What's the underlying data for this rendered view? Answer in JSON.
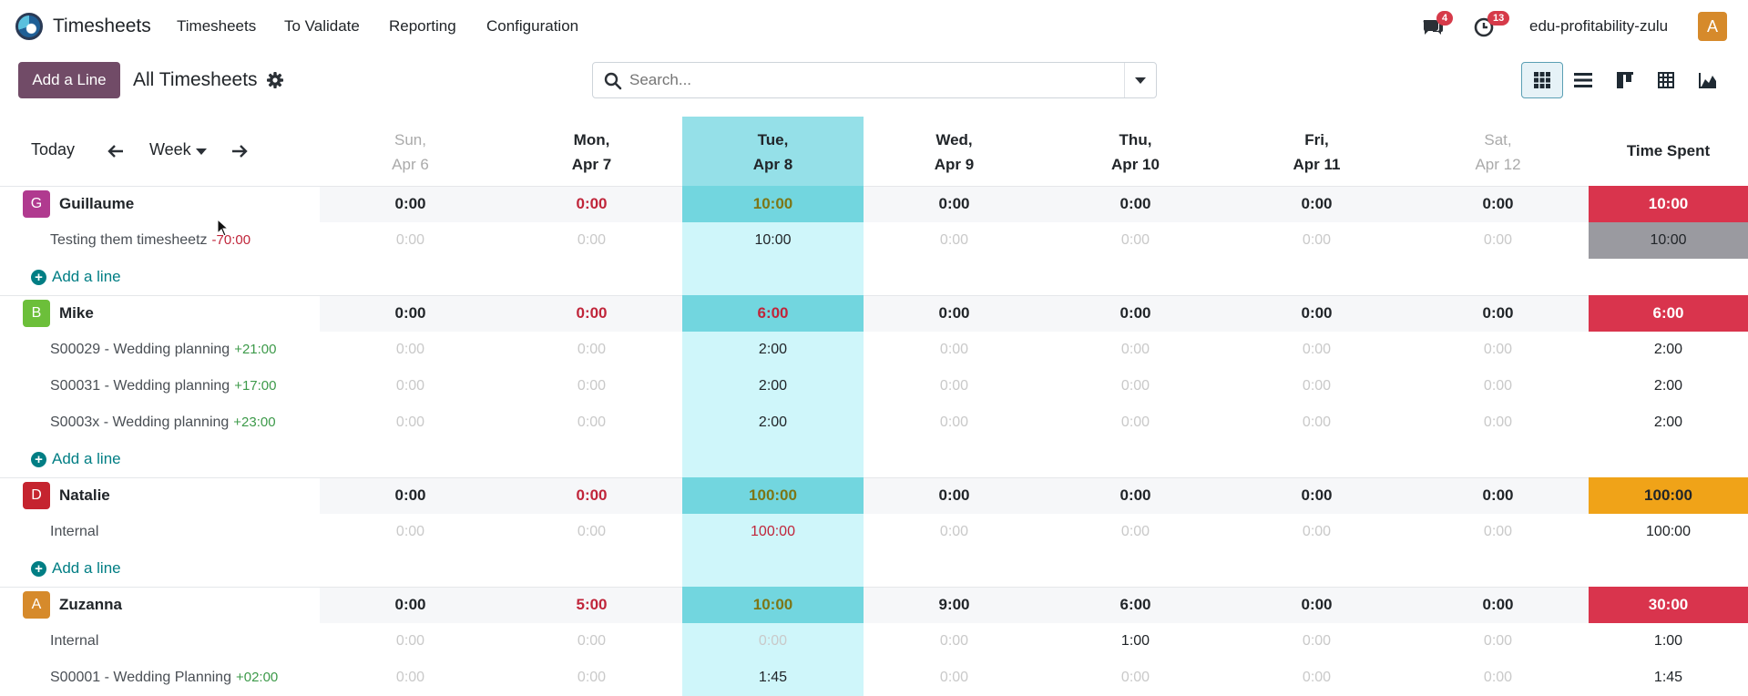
{
  "topnav": {
    "app_name": "Timesheets",
    "menu": [
      "Timesheets",
      "To Validate",
      "Reporting",
      "Configuration"
    ],
    "messages_badge": "4",
    "activities_badge": "13",
    "company": "edu-profitability-zulu",
    "user_initial": "A"
  },
  "control": {
    "add_button": "Add a Line",
    "breadcrumb": "All Timesheets",
    "search_placeholder": "Search...",
    "views": [
      "grid-icon",
      "list-icon",
      "kanban-icon",
      "pivot-icon",
      "graph-icon"
    ],
    "active_view": "grid-icon"
  },
  "grid": {
    "today_label": "Today",
    "range_label": "Week",
    "days": [
      {
        "day": "Sun,",
        "date": "Apr 6",
        "muted": true
      },
      {
        "day": "Mon,",
        "date": "Apr 7",
        "muted": false
      },
      {
        "day": "Tue,",
        "date": "Apr 8",
        "muted": false,
        "today": true
      },
      {
        "day": "Wed,",
        "date": "Apr 9",
        "muted": false
      },
      {
        "day": "Thu,",
        "date": "Apr 10",
        "muted": false
      },
      {
        "day": "Fri,",
        "date": "Apr 11",
        "muted": false
      },
      {
        "day": "Sat,",
        "date": "Apr 12",
        "muted": true
      }
    ],
    "total_label": "Time Spent",
    "add_line_label": "Add a line",
    "colors": {
      "over": "#d9344d",
      "warn": "#f0a318",
      "neutral": "#9a9aa0",
      "red_text": "#c0253a",
      "olive_text": "#7d7616",
      "green_text": "#3d9a4a",
      "muted_text": "#c9c9c9"
    },
    "groups": [
      {
        "initial": "G",
        "avatar_color": "#b03a8f",
        "name": "Guillaume",
        "totals": [
          "0:00",
          "0:00",
          "10:00",
          "0:00",
          "0:00",
          "0:00",
          "0:00"
        ],
        "total": "10:00",
        "total_style": "over",
        "mon_red": true,
        "tue_color": "olive",
        "lines": [
          {
            "label": "Testing them timesheetz",
            "delta": "-70:00",
            "delta_style": "neg",
            "values": [
              "0:00",
              "0:00",
              "10:00",
              "0:00",
              "0:00",
              "0:00",
              "0:00"
            ],
            "total": "10:00",
            "total_style": "neutral"
          }
        ],
        "add_line": true
      },
      {
        "initial": "B",
        "avatar_color": "#6cbf3a",
        "name": "Mike",
        "totals": [
          "0:00",
          "0:00",
          "6:00",
          "0:00",
          "0:00",
          "0:00",
          "0:00"
        ],
        "total": "6:00",
        "total_style": "over",
        "mon_red": true,
        "tue_color": "red",
        "lines": [
          {
            "label": "S00029 - Wedding planning",
            "delta": "+21:00",
            "delta_style": "pos",
            "values": [
              "0:00",
              "0:00",
              "2:00",
              "0:00",
              "0:00",
              "0:00",
              "0:00"
            ],
            "total": "2:00"
          },
          {
            "label": "S00031 - Wedding planning",
            "delta": "+17:00",
            "delta_style": "pos",
            "values": [
              "0:00",
              "0:00",
              "2:00",
              "0:00",
              "0:00",
              "0:00",
              "0:00"
            ],
            "total": "2:00"
          },
          {
            "label": "S0003x - Wedding planning",
            "delta": "+23:00",
            "delta_style": "pos",
            "values": [
              "0:00",
              "0:00",
              "2:00",
              "0:00",
              "0:00",
              "0:00",
              "0:00"
            ],
            "total": "2:00"
          }
        ],
        "add_line": true
      },
      {
        "initial": "D",
        "avatar_color": "#c5242f",
        "name": "Natalie",
        "totals": [
          "0:00",
          "0:00",
          "100:00",
          "0:00",
          "0:00",
          "0:00",
          "0:00"
        ],
        "total": "100:00",
        "total_style": "warn",
        "mon_red": true,
        "tue_color": "olive",
        "lines": [
          {
            "label": "Internal",
            "delta": "",
            "delta_style": "",
            "values": [
              "0:00",
              "0:00",
              "100:00",
              "0:00",
              "0:00",
              "0:00",
              "0:00"
            ],
            "total": "100:00",
            "tue_red": true
          }
        ],
        "add_line": true
      },
      {
        "initial": "A",
        "avatar_color": "#d68a2b",
        "name": "Zuzanna",
        "totals": [
          "0:00",
          "5:00",
          "10:00",
          "9:00",
          "6:00",
          "0:00",
          "0:00"
        ],
        "total": "30:00",
        "total_style": "over",
        "mon_red": true,
        "tue_color": "olive",
        "lines": [
          {
            "label": "Internal",
            "delta": "",
            "delta_style": "",
            "values": [
              "0:00",
              "0:00",
              "0:00",
              "0:00",
              "1:00",
              "0:00",
              "0:00"
            ],
            "total": "1:00"
          },
          {
            "label": "S00001 - Wedding Planning",
            "delta": "+02:00",
            "delta_style": "pos",
            "values": [
              "0:00",
              "0:00",
              "1:45",
              "0:00",
              "0:00",
              "0:00",
              "0:00"
            ],
            "total": "1:45"
          }
        ],
        "add_line": false
      }
    ]
  }
}
